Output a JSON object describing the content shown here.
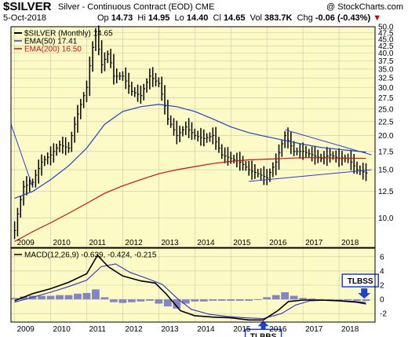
{
  "header": {
    "symbol": "$SILVER",
    "description": "Silver - Continuous Contract (EOD)",
    "exchange": "CME",
    "watermark": "@ StockCharts.com",
    "date": "5-Oct-2018",
    "quote": {
      "open_label": "Op",
      "open": "14.73",
      "high_label": "Hi",
      "high": "14.95",
      "low_label": "Lo",
      "low": "14.40",
      "close_label": "Cl",
      "close": "14.65",
      "vol_label": "Vol",
      "vol": "383.7K",
      "chg_label": "Chg",
      "chg": "-0.06 (-0.43%)",
      "chg_icon": "down-triangle-icon"
    }
  },
  "colors": {
    "panel_bg": "#fcfbc6",
    "grid": "#c8c8a8",
    "price": "#000000",
    "ema50": "#1f3fd0",
    "ema200": "#cc1010",
    "trendline": "#2a3ed8",
    "macd_line": "#000000",
    "signal_line": "#3030c0",
    "histogram": "#8484c8",
    "callout_border": "#1f3fd0"
  },
  "chart_data": [
    {
      "type": "bar",
      "title": "$SILVER (Monthly) 14.65",
      "legend": [
        {
          "name": "$SILVER (Monthly) 14.65",
          "kind": "price"
        },
        {
          "name": "EMA(50) 17.41",
          "kind": "ema50"
        },
        {
          "name": "EMA(200) 16.50",
          "kind": "ema200"
        }
      ],
      "legend_position": "top-left",
      "y_scale": "log",
      "ylim": [
        7.8,
        50
      ],
      "y_ticks": [
        10.0,
        12.5,
        15.0,
        17.5,
        20.0,
        22.5,
        25.0,
        27.5,
        30.0,
        32.5,
        35.0,
        37.5,
        40.0,
        42.5,
        45.0,
        47.5,
        50.0
      ],
      "y_tick_labels": [
        "10.0",
        "12.5",
        "15.0",
        "17.5",
        "20.0",
        "22.5",
        "25.0",
        "27.5",
        "30.0",
        "32.5",
        "35.0",
        "37.5",
        "40.0",
        "42.5",
        "45.0",
        "47.5",
        "50.0"
      ],
      "xlim": [
        2008.9,
        2019.0
      ],
      "x_ticks": [
        2009,
        2010,
        2011,
        2012,
        2013,
        2014,
        2015,
        2016,
        2017,
        2018
      ],
      "x_tick_labels": [
        "2009",
        "2010",
        "2011",
        "2012",
        "2013",
        "2014",
        "2015",
        "2016",
        "2017",
        "2018"
      ],
      "grid": true,
      "price_close": [
        [
          2009.0,
          9.0
        ],
        [
          2009.25,
          13.0
        ],
        [
          2009.5,
          13.5
        ],
        [
          2009.75,
          16.0
        ],
        [
          2010.0,
          17.0
        ],
        [
          2010.25,
          18.5
        ],
        [
          2010.5,
          18.0
        ],
        [
          2010.75,
          24.0
        ],
        [
          2011.0,
          30.0
        ],
        [
          2011.25,
          48.0
        ],
        [
          2011.4,
          36.0
        ],
        [
          2011.6,
          40.0
        ],
        [
          2011.75,
          33.0
        ],
        [
          2012.0,
          33.0
        ],
        [
          2012.25,
          29.0
        ],
        [
          2012.5,
          28.0
        ],
        [
          2012.75,
          33.0
        ],
        [
          2013.0,
          31.0
        ],
        [
          2013.25,
          23.0
        ],
        [
          2013.5,
          20.0
        ],
        [
          2013.75,
          21.5
        ],
        [
          2014.0,
          20.0
        ],
        [
          2014.25,
          19.5
        ],
        [
          2014.5,
          20.0
        ],
        [
          2014.75,
          17.0
        ],
        [
          2015.0,
          16.5
        ],
        [
          2015.25,
          16.0
        ],
        [
          2015.5,
          15.0
        ],
        [
          2015.75,
          14.5
        ],
        [
          2016.0,
          14.0
        ],
        [
          2016.25,
          16.0
        ],
        [
          2016.5,
          20.0
        ],
        [
          2016.75,
          17.5
        ],
        [
          2017.0,
          17.5
        ],
        [
          2017.25,
          17.0
        ],
        [
          2017.5,
          16.5
        ],
        [
          2017.75,
          17.0
        ],
        [
          2018.0,
          16.5
        ],
        [
          2018.25,
          16.5
        ],
        [
          2018.5,
          15.0
        ],
        [
          2018.75,
          14.6
        ]
      ],
      "ema50": [
        [
          2009.0,
          11.8
        ],
        [
          2009.5,
          12.5
        ],
        [
          2010.0,
          13.8
        ],
        [
          2010.5,
          15.5
        ],
        [
          2011.0,
          18.0
        ],
        [
          2011.5,
          22.0
        ],
        [
          2012.0,
          24.5
        ],
        [
          2012.5,
          25.5
        ],
        [
          2013.0,
          26.0
        ],
        [
          2013.5,
          25.5
        ],
        [
          2014.0,
          24.5
        ],
        [
          2014.5,
          23.0
        ],
        [
          2015.0,
          21.5
        ],
        [
          2015.5,
          20.5
        ],
        [
          2016.0,
          19.8
        ],
        [
          2016.5,
          19.2
        ],
        [
          2017.0,
          18.6
        ],
        [
          2017.5,
          18.1
        ],
        [
          2018.0,
          17.8
        ],
        [
          2018.75,
          17.4
        ]
      ],
      "ema200": [
        [
          2009.0,
          8.2
        ],
        [
          2009.5,
          8.9
        ],
        [
          2010.0,
          9.6
        ],
        [
          2010.5,
          10.4
        ],
        [
          2011.0,
          11.3
        ],
        [
          2011.5,
          12.3
        ],
        [
          2012.0,
          13.1
        ],
        [
          2012.5,
          13.8
        ],
        [
          2013.0,
          14.5
        ],
        [
          2013.5,
          15.0
        ],
        [
          2014.0,
          15.4
        ],
        [
          2014.5,
          15.8
        ],
        [
          2015.0,
          16.1
        ],
        [
          2015.5,
          16.3
        ],
        [
          2016.0,
          16.4
        ],
        [
          2016.5,
          16.5
        ],
        [
          2017.0,
          16.6
        ],
        [
          2017.5,
          16.6
        ],
        [
          2018.0,
          16.55
        ],
        [
          2018.75,
          16.5
        ]
      ],
      "trendlines": [
        [
          [
            2008.9,
            22.0
          ],
          [
            2009.5,
            13.0
          ]
        ],
        [
          [
            2016.5,
            21.0
          ],
          [
            2018.9,
            17.0
          ]
        ],
        [
          [
            2015.5,
            13.6
          ],
          [
            2018.9,
            15.0
          ]
        ]
      ]
    },
    {
      "type": "line",
      "title": "MACD(12,26,9) -0.639, -0.424, -0.215",
      "legend": [
        {
          "name": "MACD(12,26,9) -0.639, -0.424, -0.215",
          "kind": "macd"
        }
      ],
      "legend_position": "top-left",
      "ylim": [
        -3.2,
        7.2
      ],
      "y_ticks": [
        -2,
        0,
        2,
        4,
        6
      ],
      "y_tick_labels": [
        "-2",
        "0",
        "2",
        "4",
        "6"
      ],
      "xlim": [
        2008.9,
        2019.0
      ],
      "x_ticks": [
        2009,
        2010,
        2011,
        2012,
        2013,
        2014,
        2015,
        2016,
        2017,
        2018
      ],
      "x_tick_labels": [
        "2009",
        "2010",
        "2011",
        "2012",
        "2013",
        "2014",
        "2015",
        "2016",
        "2017",
        "2018"
      ],
      "grid": true,
      "macd": [
        [
          2009.0,
          -0.2
        ],
        [
          2009.5,
          0.8
        ],
        [
          2010.0,
          1.5
        ],
        [
          2010.5,
          2.4
        ],
        [
          2011.0,
          3.6
        ],
        [
          2011.3,
          6.2
        ],
        [
          2011.6,
          4.6
        ],
        [
          2012.0,
          3.3
        ],
        [
          2012.5,
          2.6
        ],
        [
          2012.9,
          2.3
        ],
        [
          2013.2,
          0.8
        ],
        [
          2013.6,
          -1.6
        ],
        [
          2014.0,
          -2.3
        ],
        [
          2014.5,
          -2.5
        ],
        [
          2015.0,
          -2.6
        ],
        [
          2015.5,
          -2.9
        ],
        [
          2015.9,
          -2.9
        ],
        [
          2016.3,
          -1.6
        ],
        [
          2016.6,
          -0.3
        ],
        [
          2017.0,
          -0.1
        ],
        [
          2017.5,
          -0.1
        ],
        [
          2018.0,
          -0.2
        ],
        [
          2018.5,
          -0.4
        ],
        [
          2018.75,
          -0.64
        ]
      ],
      "signal": [
        [
          2009.0,
          -0.4
        ],
        [
          2009.5,
          0.3
        ],
        [
          2010.0,
          1.0
        ],
        [
          2010.5,
          1.8
        ],
        [
          2011.0,
          2.7
        ],
        [
          2011.4,
          4.6
        ],
        [
          2011.8,
          5.0
        ],
        [
          2012.2,
          3.8
        ],
        [
          2012.7,
          2.9
        ],
        [
          2013.1,
          2.1
        ],
        [
          2013.5,
          0.2
        ],
        [
          2013.9,
          -1.4
        ],
        [
          2014.4,
          -2.1
        ],
        [
          2014.9,
          -2.4
        ],
        [
          2015.4,
          -2.6
        ],
        [
          2015.9,
          -2.7
        ],
        [
          2016.4,
          -2.0
        ],
        [
          2016.8,
          -0.8
        ],
        [
          2017.2,
          -0.2
        ],
        [
          2017.7,
          -0.1
        ],
        [
          2018.2,
          -0.2
        ],
        [
          2018.75,
          -0.42
        ]
      ],
      "histogram": [
        [
          2009.0,
          0.2
        ],
        [
          2009.25,
          0.4
        ],
        [
          2009.5,
          0.5
        ],
        [
          2009.75,
          0.5
        ],
        [
          2010.0,
          0.5
        ],
        [
          2010.25,
          0.6
        ],
        [
          2010.5,
          0.6
        ],
        [
          2010.75,
          0.8
        ],
        [
          2011.0,
          0.9
        ],
        [
          2011.25,
          1.4
        ],
        [
          2011.5,
          0.3
        ],
        [
          2011.75,
          -0.4
        ],
        [
          2012.0,
          -0.5
        ],
        [
          2012.25,
          -0.4
        ],
        [
          2012.5,
          -0.3
        ],
        [
          2012.75,
          -0.2
        ],
        [
          2013.0,
          -0.6
        ],
        [
          2013.25,
          -1.0
        ],
        [
          2013.5,
          -1.3
        ],
        [
          2013.75,
          -0.6
        ],
        [
          2014.0,
          -0.3
        ],
        [
          2014.25,
          -0.3
        ],
        [
          2014.5,
          -0.2
        ],
        [
          2014.75,
          -0.2
        ],
        [
          2015.0,
          -0.2
        ],
        [
          2015.25,
          -0.2
        ],
        [
          2015.5,
          -0.2
        ],
        [
          2015.75,
          -0.1
        ],
        [
          2016.0,
          0.3
        ],
        [
          2016.25,
          0.6
        ],
        [
          2016.5,
          1.0
        ],
        [
          2016.75,
          0.5
        ],
        [
          2017.0,
          0.2
        ],
        [
          2017.25,
          0.1
        ],
        [
          2017.5,
          0.0
        ],
        [
          2017.75,
          0.0
        ],
        [
          2018.0,
          0.0
        ],
        [
          2018.25,
          -0.1
        ],
        [
          2018.5,
          -0.2
        ],
        [
          2018.75,
          -0.22
        ]
      ],
      "callouts": [
        {
          "text": "TLBSS",
          "x": 2018.7,
          "y": 0.0
        },
        {
          "text": "TLBBS",
          "x": 2015.9,
          "y": -2.9
        }
      ]
    }
  ]
}
